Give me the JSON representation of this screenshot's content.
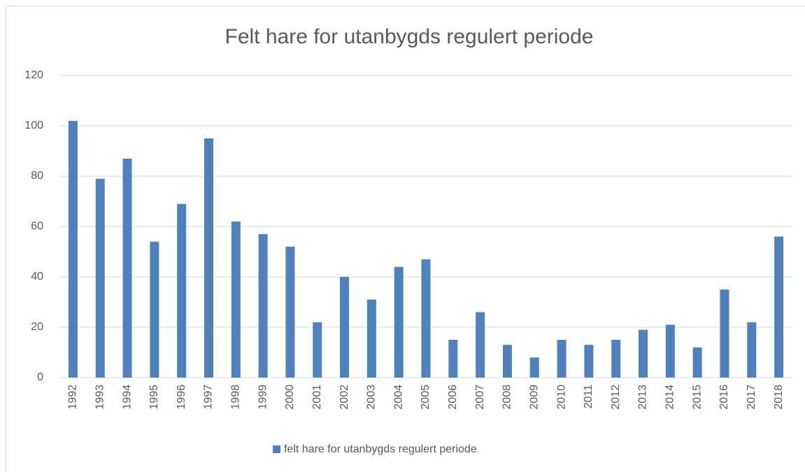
{
  "chart_data": {
    "type": "bar",
    "title": "Felt hare for utanbygds regulert periode",
    "categories": [
      "1992",
      "1993",
      "1994",
      "1995",
      "1996",
      "1997",
      "1998",
      "1999",
      "2000",
      "2001",
      "2002",
      "2003",
      "2004",
      "2005",
      "2006",
      "2007",
      "2008",
      "2009",
      "2010",
      "2011",
      "2012",
      "2013",
      "2014",
      "2015",
      "2016",
      "2017",
      "2018"
    ],
    "series": [
      {
        "name": "felt hare for utanbygds regulert periode",
        "color": "#4f81bd",
        "values": [
          102,
          79,
          87,
          54,
          69,
          95,
          62,
          57,
          52,
          22,
          40,
          31,
          44,
          47,
          15,
          26,
          13,
          8,
          15,
          13,
          15,
          19,
          21,
          12,
          35,
          22,
          56
        ]
      }
    ],
    "ylim": [
      0,
      120
    ],
    "yticks": [
      0,
      20,
      40,
      60,
      80,
      100,
      120
    ],
    "grid": true,
    "legend": "bottom"
  }
}
